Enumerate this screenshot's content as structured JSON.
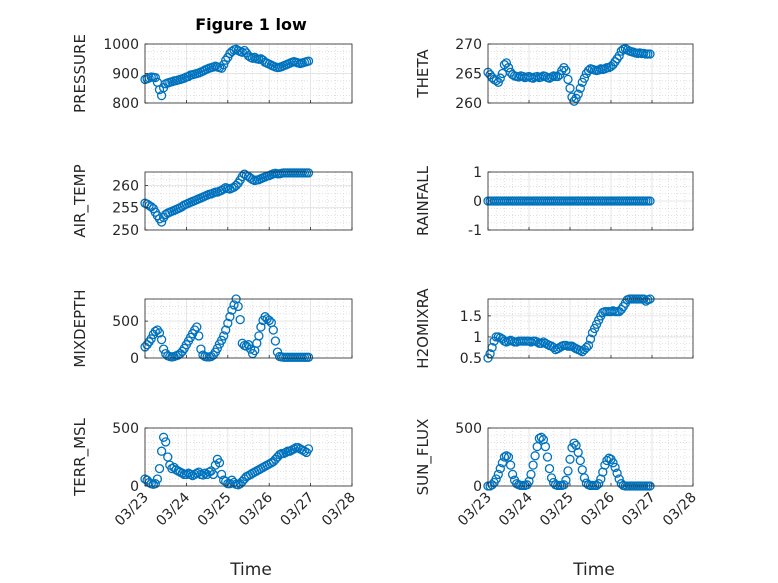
{
  "figure": {
    "title": "Figure 1 low",
    "marker_color": "#0072BD",
    "x_tick_labels": [
      "03/23",
      "03/24",
      "03/25",
      "03/26",
      "03/27",
      "03/28"
    ],
    "xlabel": "Time"
  },
  "chart_data": [
    {
      "type": "scatter",
      "title": "Figure 1 low",
      "ylabel": "PRESSURE",
      "ylim": [
        800,
        1000
      ],
      "yticks": [
        800,
        900,
        1000
      ],
      "xlim": [
        0,
        5
      ],
      "grid": true,
      "x": [
        0,
        0.05,
        0.1,
        0.15,
        0.2,
        0.25,
        0.3,
        0.35,
        0.4,
        0.45,
        0.5,
        0.55,
        0.6,
        0.65,
        0.7,
        0.75,
        0.8,
        0.85,
        0.9,
        0.95,
        1,
        1.05,
        1.1,
        1.15,
        1.2,
        1.25,
        1.3,
        1.35,
        1.4,
        1.45,
        1.5,
        1.55,
        1.6,
        1.65,
        1.7,
        1.75,
        1.8,
        1.85,
        1.9,
        1.95,
        2,
        2.05,
        2.1,
        2.15,
        2.2,
        2.25,
        2.3,
        2.35,
        2.4,
        2.45,
        2.5,
        2.55,
        2.6,
        2.65,
        2.7,
        2.75,
        2.8,
        2.85,
        2.9,
        2.95,
        3,
        3.05,
        3.1,
        3.15,
        3.2,
        3.25,
        3.3,
        3.35,
        3.4,
        3.45,
        3.5,
        3.55,
        3.6,
        3.65,
        3.7,
        3.75,
        3.8,
        3.85,
        3.9,
        3.95
      ],
      "y": [
        880,
        882,
        885,
        888,
        887,
        886,
        870,
        845,
        825,
        852,
        865,
        868,
        870,
        872,
        875,
        876,
        878,
        880,
        882,
        884,
        888,
        890,
        895,
        896,
        898,
        900,
        902,
        905,
        908,
        912,
        915,
        918,
        920,
        922,
        925,
        922,
        920,
        918,
        930,
        945,
        955,
        968,
        975,
        980,
        982,
        978,
        975,
        972,
        978,
        970,
        960,
        955,
        952,
        955,
        950,
        948,
        950,
        945,
        938,
        935,
        932,
        928,
        925,
        922,
        920,
        921,
        923,
        926,
        929,
        932,
        935,
        938,
        940,
        938,
        936,
        934,
        936,
        938,
        940,
        942
      ],
      "series_name": ""
    },
    {
      "type": "scatter",
      "ylabel": "THETA",
      "ylim": [
        260,
        270
      ],
      "yticks": [
        260,
        265,
        270
      ],
      "xlim": [
        0,
        5
      ],
      "grid": true,
      "x": [
        0,
        0.05,
        0.1,
        0.15,
        0.2,
        0.25,
        0.3,
        0.35,
        0.4,
        0.45,
        0.5,
        0.55,
        0.6,
        0.65,
        0.7,
        0.75,
        0.8,
        0.85,
        0.9,
        0.95,
        1,
        1.05,
        1.1,
        1.15,
        1.2,
        1.25,
        1.3,
        1.35,
        1.4,
        1.45,
        1.5,
        1.55,
        1.6,
        1.65,
        1.7,
        1.75,
        1.8,
        1.85,
        1.9,
        1.95,
        2,
        2.05,
        2.1,
        2.15,
        2.2,
        2.25,
        2.3,
        2.35,
        2.4,
        2.45,
        2.5,
        2.55,
        2.6,
        2.65,
        2.7,
        2.75,
        2.8,
        2.85,
        2.9,
        2.95,
        3,
        3.05,
        3.1,
        3.15,
        3.2,
        3.25,
        3.3,
        3.35,
        3.4,
        3.45,
        3.5,
        3.55,
        3.6,
        3.65,
        3.7,
        3.75,
        3.8,
        3.85,
        3.9,
        3.95
      ],
      "y": [
        265.2,
        264.8,
        264.3,
        264,
        263.8,
        263.5,
        264.2,
        265,
        266.5,
        266.8,
        266,
        265.2,
        264.8,
        264.6,
        264.5,
        264.4,
        264.6,
        264.5,
        264.3,
        264.4,
        264.5,
        264.3,
        264.2,
        264.4,
        264.5,
        264.3,
        264.4,
        264.6,
        264.5,
        264.3,
        264.2,
        264.4,
        264.6,
        264.5,
        264.5,
        264.8,
        265.5,
        266,
        265.5,
        264,
        262.5,
        261,
        260.3,
        260.8,
        261.5,
        262.5,
        263.5,
        264.2,
        265,
        265.5,
        265.8,
        265.7,
        265.6,
        265.5,
        265.6,
        265.8,
        265.7,
        265.8,
        266,
        266,
        266.2,
        266.5,
        267,
        267.5,
        268,
        268.8,
        269.1,
        269.2,
        269,
        268.8,
        268.7,
        268.6,
        268.5,
        268.4,
        268.5,
        268.4,
        268.4,
        268.3,
        268.3,
        268.3
      ]
    },
    {
      "type": "scatter",
      "ylabel": "AIR_TEMP",
      "ylim": [
        250,
        263
      ],
      "yticks": [
        250,
        255,
        260
      ],
      "xlim": [
        0,
        5
      ],
      "grid": true,
      "x": [
        0,
        0.05,
        0.1,
        0.15,
        0.2,
        0.25,
        0.3,
        0.35,
        0.4,
        0.45,
        0.5,
        0.55,
        0.6,
        0.65,
        0.7,
        0.75,
        0.8,
        0.85,
        0.9,
        0.95,
        1,
        1.05,
        1.1,
        1.15,
        1.2,
        1.25,
        1.3,
        1.35,
        1.4,
        1.45,
        1.5,
        1.55,
        1.6,
        1.65,
        1.7,
        1.75,
        1.8,
        1.85,
        1.9,
        1.95,
        2,
        2.05,
        2.1,
        2.15,
        2.2,
        2.25,
        2.3,
        2.35,
        2.4,
        2.45,
        2.5,
        2.55,
        2.6,
        2.65,
        2.7,
        2.75,
        2.8,
        2.85,
        2.9,
        2.95,
        3,
        3.05,
        3.1,
        3.15,
        3.2,
        3.25,
        3.3,
        3.35,
        3.4,
        3.45,
        3.5,
        3.55,
        3.6,
        3.65,
        3.7,
        3.75,
        3.8,
        3.85,
        3.9,
        3.95
      ],
      "y": [
        256,
        255.8,
        255.5,
        255.2,
        254.8,
        254,
        253.2,
        252.5,
        251.8,
        252.8,
        253.5,
        253.8,
        254,
        254.2,
        254.4,
        254.6,
        254.8,
        255,
        255.3,
        255.6,
        255.8,
        256,
        256.2,
        256.4,
        256.6,
        256.8,
        257,
        257.2,
        257.4,
        257.6,
        257.8,
        258,
        258.1,
        258.3,
        258.5,
        258.5,
        258.7,
        258.9,
        259.2,
        259.5,
        259.3,
        259.2,
        259.4,
        259.6,
        260,
        260.5,
        261.2,
        262,
        262.5,
        262.2,
        262,
        261.6,
        261.3,
        261.1,
        261.2,
        261.3,
        261.5,
        261.7,
        261.9,
        262.1,
        262.2,
        262.4,
        262.6,
        262.7,
        262.6,
        262.6,
        262.7,
        262.8,
        262.8,
        262.8,
        262.8,
        262.8,
        262.8,
        262.8,
        262.8,
        262.8,
        262.8,
        262.8,
        262.8,
        262.8
      ]
    },
    {
      "type": "scatter",
      "ylabel": "RAINFALL",
      "ylim": [
        -1,
        1
      ],
      "yticks": [
        -1,
        0,
        1
      ],
      "xlim": [
        0,
        5
      ],
      "grid": true,
      "x": [
        0,
        0.05,
        0.1,
        0.15,
        0.2,
        0.25,
        0.3,
        0.35,
        0.4,
        0.45,
        0.5,
        0.55,
        0.6,
        0.65,
        0.7,
        0.75,
        0.8,
        0.85,
        0.9,
        0.95,
        1,
        1.05,
        1.1,
        1.15,
        1.2,
        1.25,
        1.3,
        1.35,
        1.4,
        1.45,
        1.5,
        1.55,
        1.6,
        1.65,
        1.7,
        1.75,
        1.8,
        1.85,
        1.9,
        1.95,
        2,
        2.05,
        2.1,
        2.15,
        2.2,
        2.25,
        2.3,
        2.35,
        2.4,
        2.45,
        2.5,
        2.55,
        2.6,
        2.65,
        2.7,
        2.75,
        2.8,
        2.85,
        2.9,
        2.95,
        3,
        3.05,
        3.1,
        3.15,
        3.2,
        3.25,
        3.3,
        3.35,
        3.4,
        3.45,
        3.5,
        3.55,
        3.6,
        3.65,
        3.7,
        3.75,
        3.8,
        3.85,
        3.9,
        3.95
      ],
      "y": [
        0,
        0,
        0,
        0,
        0,
        0,
        0,
        0,
        0,
        0,
        0,
        0,
        0,
        0,
        0,
        0,
        0,
        0,
        0,
        0,
        0,
        0,
        0,
        0,
        0,
        0,
        0,
        0,
        0,
        0,
        0,
        0,
        0,
        0,
        0,
        0,
        0,
        0,
        0,
        0,
        0,
        0,
        0,
        0,
        0,
        0,
        0,
        0,
        0,
        0,
        0,
        0,
        0,
        0,
        0,
        0,
        0,
        0,
        0,
        0,
        0,
        0,
        0,
        0,
        0,
        0,
        0,
        0,
        0,
        0,
        0,
        0,
        0,
        0,
        0,
        0,
        0,
        0,
        0,
        0
      ]
    },
    {
      "type": "scatter",
      "ylabel": "MIXDEPTH",
      "ylim": [
        0,
        800
      ],
      "yticks": [
        0,
        500
      ],
      "xlim": [
        0,
        5
      ],
      "grid": true,
      "x": [
        0,
        0.05,
        0.1,
        0.15,
        0.2,
        0.25,
        0.3,
        0.35,
        0.4,
        0.45,
        0.5,
        0.55,
        0.6,
        0.65,
        0.7,
        0.75,
        0.8,
        0.85,
        0.9,
        0.95,
        1,
        1.05,
        1.1,
        1.15,
        1.2,
        1.25,
        1.3,
        1.35,
        1.4,
        1.45,
        1.5,
        1.55,
        1.6,
        1.65,
        1.7,
        1.75,
        1.8,
        1.85,
        1.9,
        1.95,
        2,
        2.05,
        2.1,
        2.15,
        2.2,
        2.25,
        2.3,
        2.35,
        2.4,
        2.45,
        2.5,
        2.55,
        2.6,
        2.65,
        2.7,
        2.75,
        2.8,
        2.85,
        2.9,
        2.95,
        3,
        3.05,
        3.1,
        3.15,
        3.2,
        3.25,
        3.3,
        3.35,
        3.4,
        3.45,
        3.5,
        3.55,
        3.6,
        3.65,
        3.7,
        3.75,
        3.8,
        3.85,
        3.9,
        3.95
      ],
      "y": [
        150,
        180,
        220,
        260,
        320,
        360,
        380,
        340,
        250,
        120,
        60,
        30,
        20,
        15,
        20,
        30,
        40,
        60,
        90,
        130,
        180,
        230,
        280,
        330,
        380,
        420,
        300,
        120,
        40,
        20,
        15,
        15,
        20,
        40,
        80,
        130,
        190,
        240,
        300,
        380,
        470,
        560,
        650,
        720,
        800,
        700,
        520,
        200,
        170,
        160,
        180,
        120,
        60,
        100,
        200,
        300,
        420,
        510,
        560,
        530,
        510,
        480,
        380,
        230,
        80,
        20,
        15,
        10,
        10,
        10,
        10,
        10,
        10,
        10,
        10,
        10,
        10,
        10,
        10,
        10
      ]
    },
    {
      "type": "scatter",
      "ylabel": "H2OMIXRA",
      "ylim": [
        0.5,
        1.9
      ],
      "yticks": [
        0.5,
        1,
        1.5
      ],
      "xlim": [
        0,
        5
      ],
      "grid": true,
      "x": [
        0,
        0.05,
        0.1,
        0.15,
        0.2,
        0.25,
        0.3,
        0.35,
        0.4,
        0.45,
        0.5,
        0.55,
        0.6,
        0.65,
        0.7,
        0.75,
        0.8,
        0.85,
        0.9,
        0.95,
        1,
        1.05,
        1.1,
        1.15,
        1.2,
        1.25,
        1.3,
        1.35,
        1.4,
        1.45,
        1.5,
        1.55,
        1.6,
        1.65,
        1.7,
        1.75,
        1.8,
        1.85,
        1.9,
        1.95,
        2,
        2.05,
        2.1,
        2.15,
        2.2,
        2.25,
        2.3,
        2.35,
        2.4,
        2.45,
        2.5,
        2.55,
        2.6,
        2.65,
        2.7,
        2.75,
        2.8,
        2.85,
        2.9,
        2.95,
        3,
        3.05,
        3.1,
        3.15,
        3.2,
        3.25,
        3.3,
        3.35,
        3.4,
        3.45,
        3.5,
        3.55,
        3.6,
        3.65,
        3.7,
        3.75,
        3.8,
        3.85,
        3.9,
        3.95
      ],
      "y": [
        0.5,
        0.6,
        0.75,
        0.9,
        1.0,
        1.0,
        0.98,
        0.95,
        0.9,
        0.88,
        0.9,
        0.92,
        0.9,
        0.88,
        0.88,
        0.9,
        0.9,
        0.9,
        0.9,
        0.9,
        0.9,
        0.88,
        0.9,
        0.9,
        0.88,
        0.85,
        0.85,
        0.88,
        0.85,
        0.82,
        0.8,
        0.78,
        0.75,
        0.7,
        0.72,
        0.75,
        0.78,
        0.8,
        0.8,
        0.78,
        0.78,
        0.78,
        0.75,
        0.72,
        0.7,
        0.68,
        0.65,
        0.7,
        0.75,
        0.8,
        0.95,
        1.1,
        1.2,
        1.3,
        1.4,
        1.5,
        1.58,
        1.6,
        1.6,
        1.6,
        1.6,
        1.62,
        1.6,
        1.6,
        1.6,
        1.65,
        1.72,
        1.8,
        1.88,
        1.9,
        1.9,
        1.9,
        1.9,
        1.9,
        1.9,
        1.9,
        1.9,
        1.85,
        1.88,
        1.9
      ]
    },
    {
      "type": "scatter",
      "ylabel": "TERR_MSL",
      "ylim": [
        0,
        500
      ],
      "yticks": [
        0,
        500
      ],
      "xlim": [
        0,
        5
      ],
      "grid": true,
      "x": [
        0,
        0.05,
        0.1,
        0.15,
        0.2,
        0.25,
        0.3,
        0.35,
        0.4,
        0.45,
        0.5,
        0.55,
        0.6,
        0.65,
        0.7,
        0.75,
        0.8,
        0.85,
        0.9,
        0.95,
        1,
        1.05,
        1.1,
        1.15,
        1.2,
        1.25,
        1.3,
        1.35,
        1.4,
        1.45,
        1.5,
        1.55,
        1.6,
        1.65,
        1.7,
        1.75,
        1.8,
        1.85,
        1.9,
        1.95,
        2,
        2.05,
        2.1,
        2.15,
        2.2,
        2.25,
        2.3,
        2.35,
        2.4,
        2.45,
        2.5,
        2.55,
        2.6,
        2.65,
        2.7,
        2.75,
        2.8,
        2.85,
        2.9,
        2.95,
        3,
        3.05,
        3.1,
        3.15,
        3.2,
        3.25,
        3.3,
        3.35,
        3.4,
        3.45,
        3.5,
        3.55,
        3.6,
        3.65,
        3.7,
        3.75,
        3.8,
        3.85,
        3.9,
        3.95
      ],
      "y": [
        60,
        50,
        30,
        20,
        15,
        20,
        60,
        150,
        300,
        420,
        380,
        250,
        180,
        150,
        160,
        140,
        130,
        120,
        110,
        100,
        100,
        110,
        100,
        90,
        100,
        110,
        120,
        100,
        95,
        110,
        100,
        120,
        130,
        100,
        180,
        230,
        200,
        100,
        50,
        40,
        20,
        20,
        50,
        30,
        15,
        10,
        20,
        40,
        60,
        80,
        90,
        100,
        110,
        120,
        130,
        140,
        150,
        160,
        170,
        180,
        190,
        200,
        210,
        230,
        250,
        270,
        280,
        280,
        290,
        300,
        300,
        310,
        320,
        330,
        330,
        320,
        310,
        300,
        290,
        320
      ]
    },
    {
      "type": "scatter",
      "ylabel": "SUN_FLUX",
      "ylim": [
        0,
        500
      ],
      "yticks": [
        0,
        500
      ],
      "xlim": [
        0,
        5
      ],
      "grid": true,
      "x": [
        0,
        0.05,
        0.1,
        0.15,
        0.2,
        0.25,
        0.3,
        0.35,
        0.4,
        0.45,
        0.5,
        0.55,
        0.6,
        0.65,
        0.7,
        0.75,
        0.8,
        0.85,
        0.9,
        0.95,
        1,
        1.05,
        1.1,
        1.15,
        1.2,
        1.25,
        1.3,
        1.35,
        1.4,
        1.45,
        1.5,
        1.55,
        1.6,
        1.65,
        1.7,
        1.75,
        1.8,
        1.85,
        1.9,
        1.95,
        2,
        2.05,
        2.1,
        2.15,
        2.2,
        2.25,
        2.3,
        2.35,
        2.4,
        2.45,
        2.5,
        2.55,
        2.6,
        2.65,
        2.7,
        2.75,
        2.8,
        2.85,
        2.9,
        2.95,
        3,
        3.05,
        3.1,
        3.15,
        3.2,
        3.25,
        3.3,
        3.35,
        3.4,
        3.45,
        3.5,
        3.55,
        3.6,
        3.65,
        3.7,
        3.75,
        3.8,
        3.85,
        3.9,
        3.95
      ],
      "y": [
        0,
        0,
        10,
        30,
        60,
        100,
        150,
        200,
        250,
        260,
        250,
        180,
        100,
        50,
        20,
        10,
        5,
        5,
        5,
        10,
        40,
        100,
        180,
        260,
        340,
        410,
        420,
        400,
        340,
        250,
        150,
        70,
        30,
        10,
        5,
        5,
        5,
        10,
        50,
        130,
        230,
        330,
        370,
        350,
        290,
        220,
        140,
        70,
        25,
        10,
        5,
        5,
        5,
        5,
        20,
        60,
        120,
        180,
        220,
        240,
        230,
        200,
        160,
        110,
        60,
        20,
        5,
        0,
        0,
        0,
        0,
        0,
        0,
        0,
        0,
        0,
        0,
        0,
        0,
        0
      ]
    }
  ]
}
